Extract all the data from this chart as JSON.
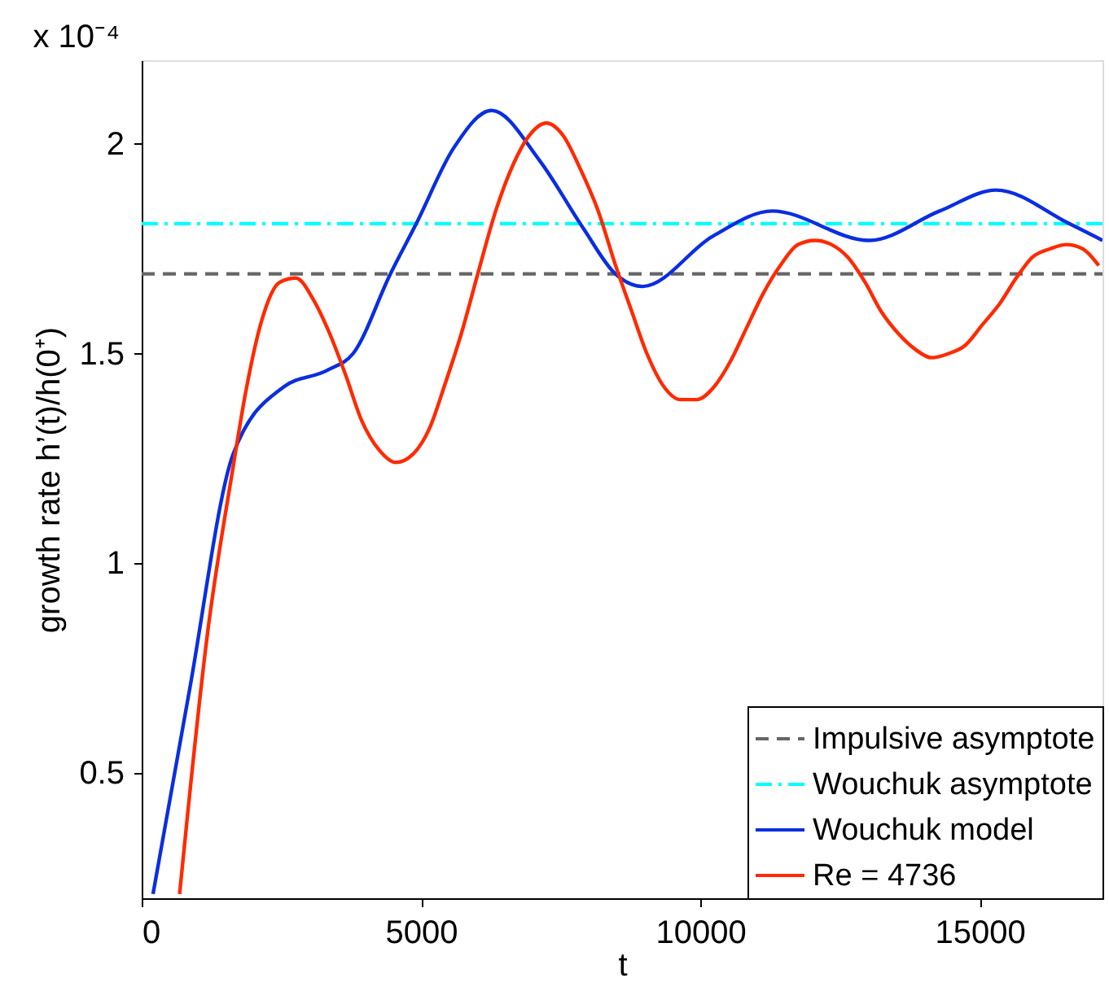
{
  "chart_data": {
    "type": "line",
    "xlabel": "t",
    "ylabel": "growth rate h’(t)/h(0⁺)",
    "annotations": [
      "x 10⁻⁴"
    ],
    "xlim": [
      0,
      17200
    ],
    "ylim": [
      0.2,
      2.2
    ],
    "xticks": [
      0,
      5000,
      10000,
      15000
    ],
    "yticks": [
      0.5,
      1,
      1.5,
      2
    ],
    "grid": false,
    "legend": "bottom right",
    "series": [
      {
        "name": "Impulsive asymptote",
        "color": "#666666",
        "line_style": "dashed",
        "x": [
          0,
          17200
        ],
        "values": [
          1.69,
          1.69
        ]
      },
      {
        "name": "Wouchuk asymptote",
        "color": "#00ffff",
        "line_style": "dashdot",
        "x": [
          0,
          17200
        ],
        "values": [
          1.81,
          1.81
        ]
      },
      {
        "name": "Wouchuk model",
        "color": "#0a2ee0",
        "line_style": "solid",
        "x": [
          203,
          847,
          1638,
          2538,
          3321,
          3785,
          4452,
          4916,
          5583,
          6265,
          7126,
          7900,
          8480,
          8967,
          10223,
          11287,
          13027,
          14283,
          15297,
          16603,
          17200
        ],
        "values": [
          0.21,
          0.69,
          1.26,
          1.42,
          1.46,
          1.5,
          1.69,
          1.81,
          1.99,
          2.08,
          1.96,
          1.8,
          1.69,
          1.66,
          1.78,
          1.84,
          1.77,
          1.84,
          1.89,
          1.81,
          1.77
        ]
      },
      {
        "name": "Re = 4736",
        "color": "#ff2a00",
        "line_style": "solid",
        "x": [
          679,
          1186,
          1638,
          1865,
          2151,
          2470,
          2760,
          3068,
          3358,
          3648,
          3938,
          4249,
          4548,
          4858,
          5148,
          5438,
          5728,
          6017,
          6337,
          6647,
          6937,
          7245,
          7546,
          7854,
          8173,
          8484,
          8774,
          9044,
          9354,
          9643,
          9933,
          10243,
          10534,
          10824,
          11114,
          11433,
          11752,
          12059,
          12349,
          12639,
          12950,
          13240,
          13530,
          13849,
          14139,
          14449,
          14747,
          15058,
          15365,
          15655,
          15945,
          16264,
          16554,
          16844,
          17133
        ],
        "values": [
          0.21,
          0.84,
          1.23,
          1.41,
          1.58,
          1.67,
          1.68,
          1.63,
          1.55,
          1.45,
          1.34,
          1.27,
          1.24,
          1.26,
          1.32,
          1.43,
          1.55,
          1.69,
          1.84,
          1.95,
          2.02,
          2.05,
          2.02,
          1.94,
          1.84,
          1.71,
          1.6,
          1.5,
          1.42,
          1.39,
          1.39,
          1.42,
          1.48,
          1.56,
          1.64,
          1.71,
          1.76,
          1.77,
          1.76,
          1.73,
          1.67,
          1.6,
          1.55,
          1.51,
          1.49,
          1.5,
          1.52,
          1.57,
          1.62,
          1.68,
          1.73,
          1.75,
          1.76,
          1.75,
          1.71
        ]
      }
    ]
  }
}
